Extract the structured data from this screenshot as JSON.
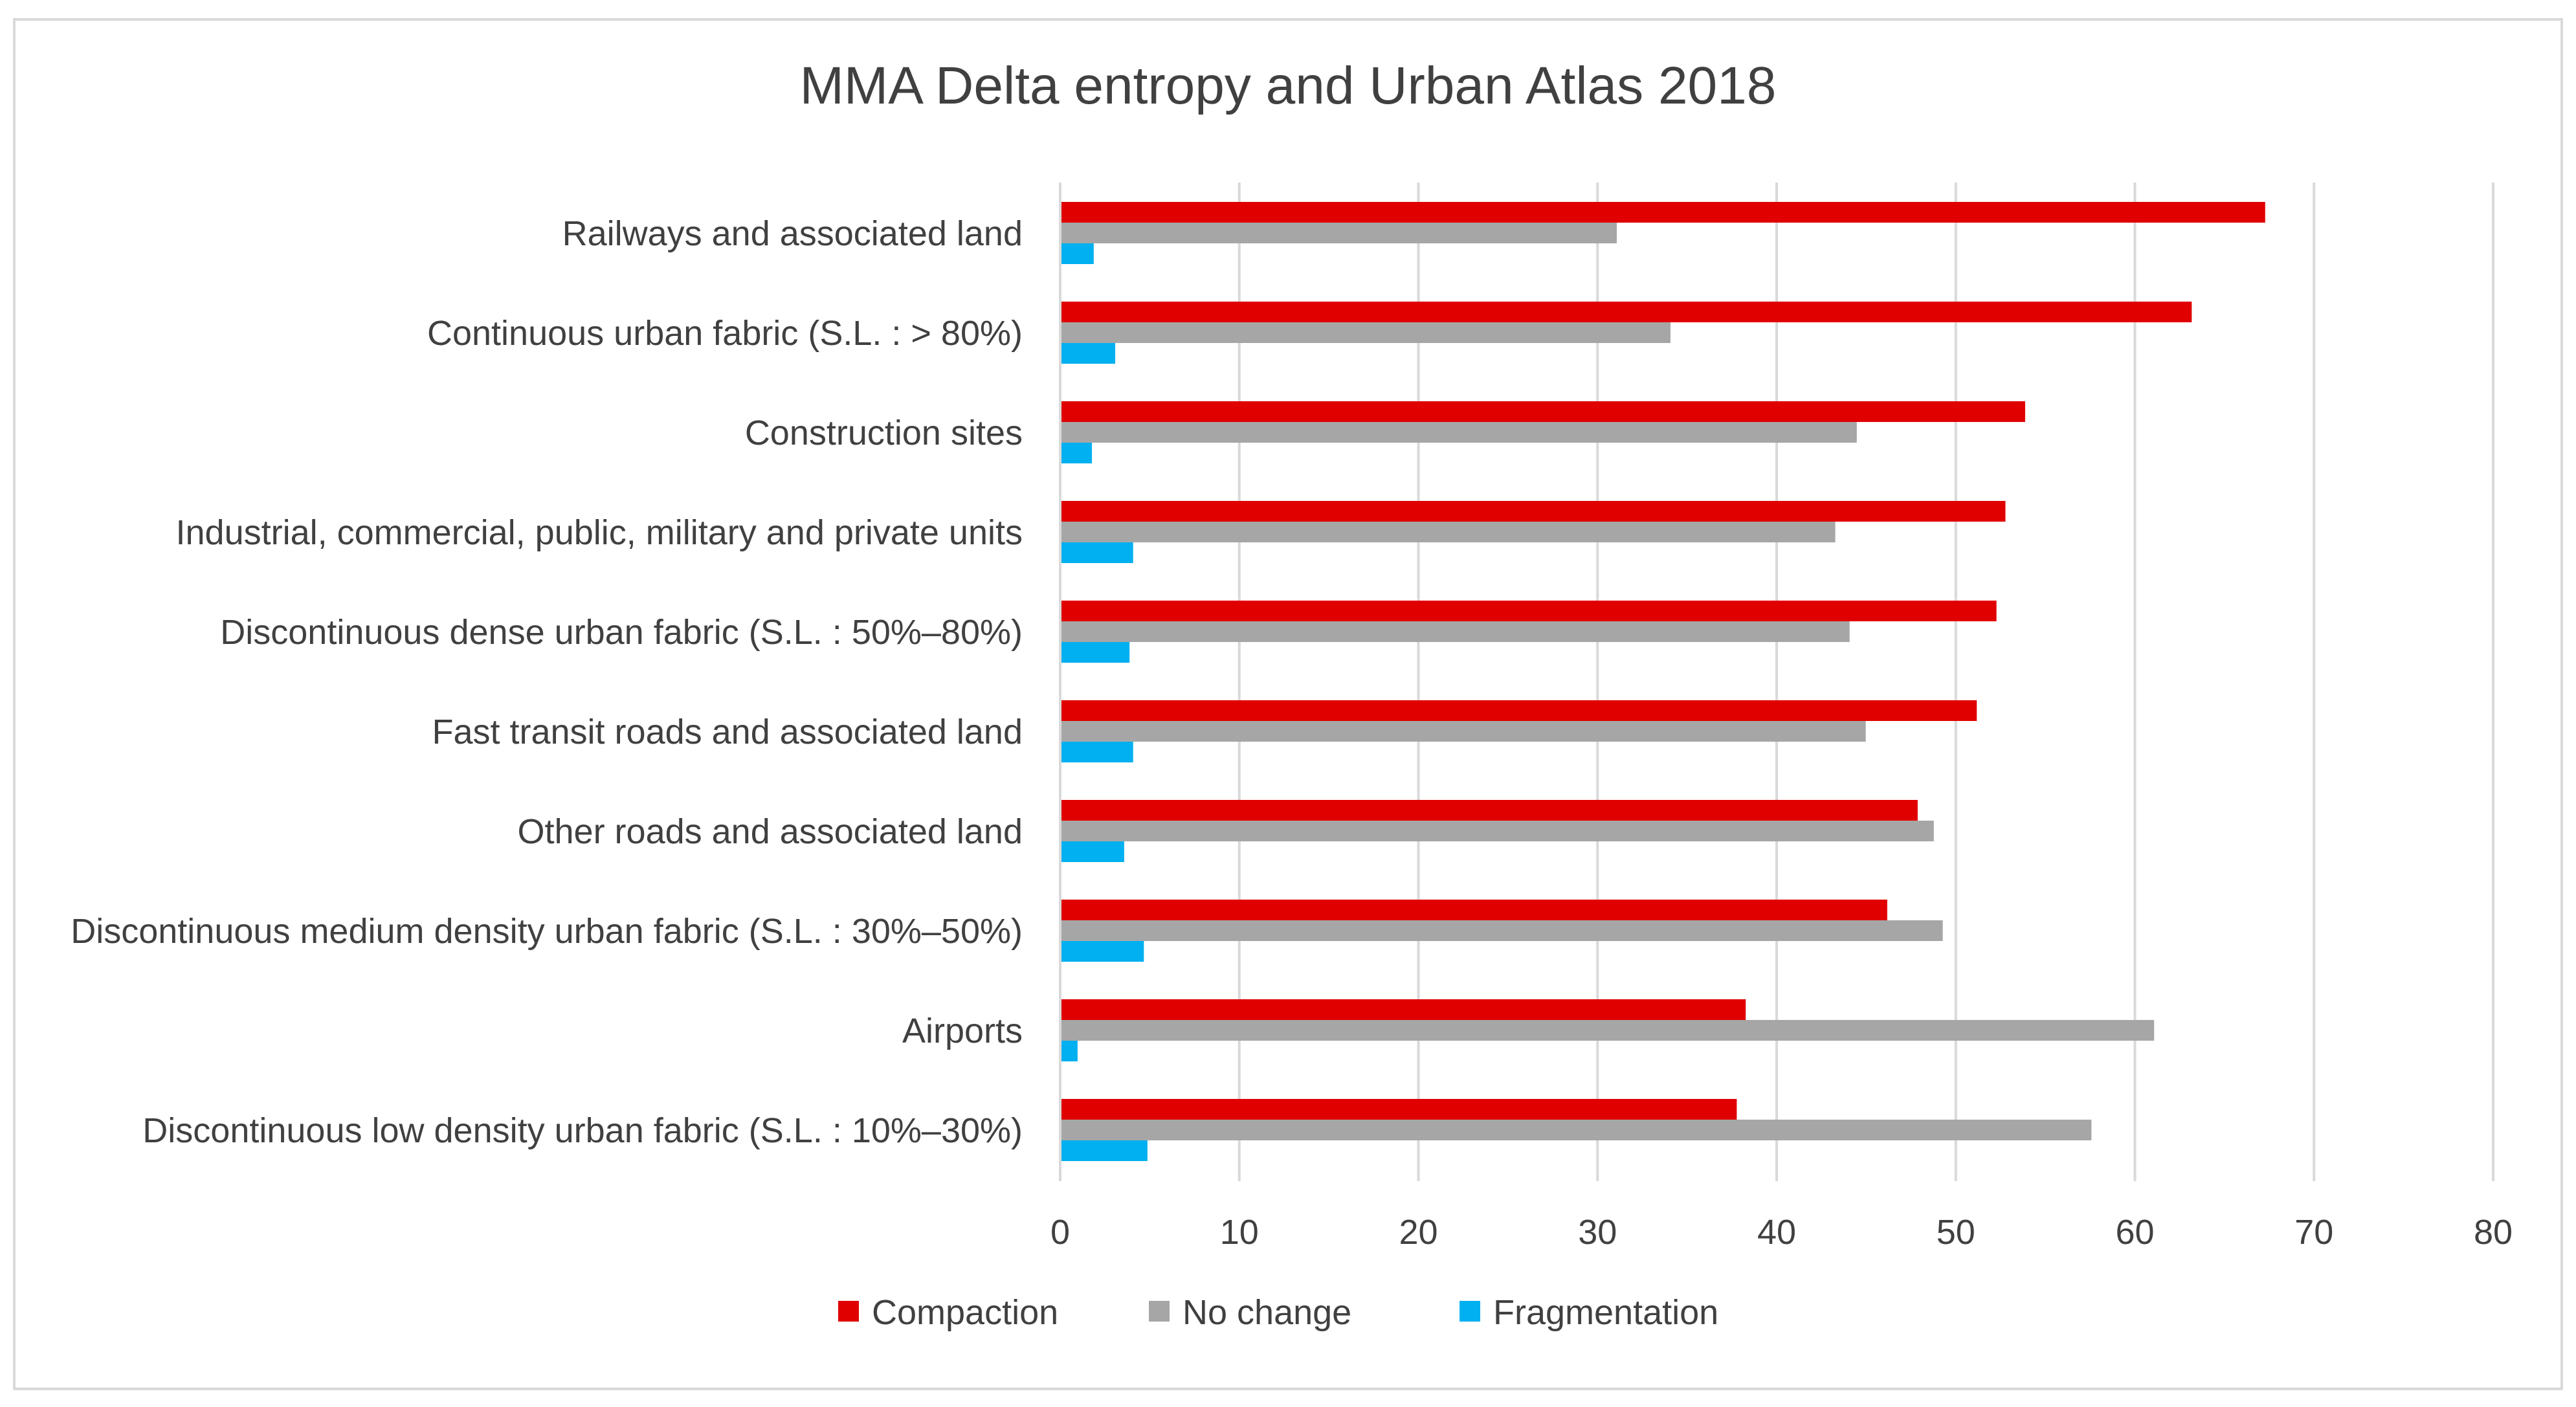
{
  "chart_data": {
    "type": "bar",
    "orientation": "horizontal",
    "title": "MMA Delta entropy and Urban Atlas 2018",
    "categories": [
      "Railways and associated land",
      "Continuous urban fabric (S.L. : > 80%)",
      "Construction sites",
      "Industrial, commercial, public, military and private units",
      "Discontinuous dense urban fabric (S.L. : 50%–80%)",
      "Fast transit roads and associated land",
      "Other roads and associated land",
      "Discontinuous medium density urban fabric (S.L. : 30%–50%)",
      "Airports",
      "Discontinuous low density urban fabric (S.L. : 10%–30%)"
    ],
    "series": [
      {
        "name": "Compaction",
        "color": "#e00000",
        "values": [
          67.2,
          63.1,
          53.8,
          52.7,
          52.2,
          51.1,
          47.8,
          46.1,
          38.2,
          37.7
        ]
      },
      {
        "name": "No change",
        "color": "#a6a6a6",
        "values": [
          31.0,
          34.0,
          44.4,
          43.2,
          44.0,
          44.9,
          48.7,
          49.2,
          61.0,
          57.5
        ]
      },
      {
        "name": "Fragmentation",
        "color": "#00b0f0",
        "values": [
          1.8,
          3.0,
          1.7,
          4.0,
          3.8,
          4.0,
          3.5,
          4.6,
          0.9,
          4.8
        ]
      }
    ],
    "xlim": [
      0,
      80
    ],
    "xticks": [
      "0",
      "10",
      "20",
      "30",
      "40",
      "50",
      "60",
      "70",
      "80"
    ],
    "xlabel": "",
    "ylabel": "",
    "grid": "vertical",
    "legend_position": "bottom",
    "frame_color": "#d9d9d9",
    "grid_color": "#d9d9d9"
  }
}
